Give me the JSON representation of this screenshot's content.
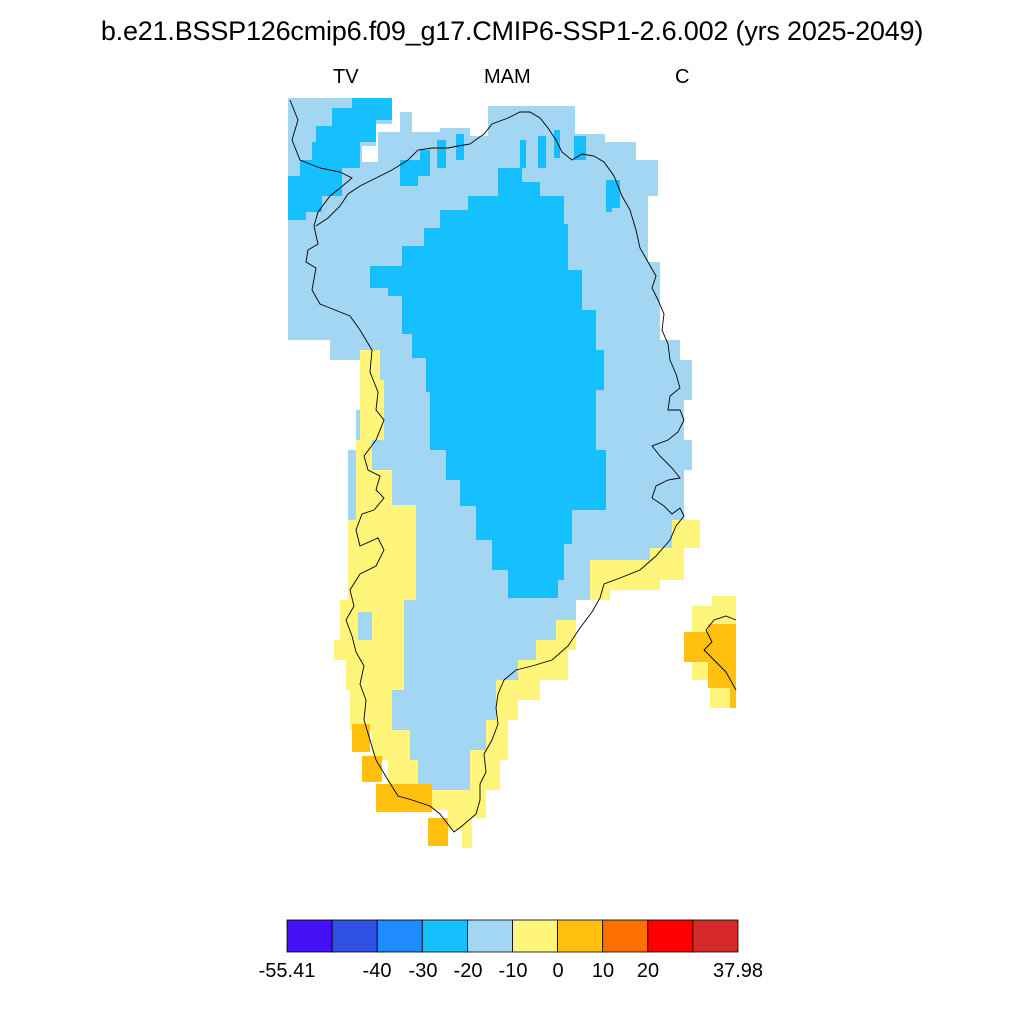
{
  "title": "b.e21.BSSP126cmip6.f09_g17.CMIP6-SSP1-2.6.002 (yrs 2025-2049)",
  "subtitle_left": "TV",
  "subtitle_center": "MAM",
  "subtitle_right": "C",
  "colorbar": {
    "colors": [
      "#4410f5",
      "#3050e6",
      "#1e8cff",
      "#16c0ff",
      "#a2d6f2",
      "#fff57a",
      "#ffc010",
      "#ff7000",
      "#ff0000",
      "#d62a2a"
    ],
    "labels": [
      "-55.41",
      "-40",
      "-30",
      "-20",
      "-10",
      "0",
      "10",
      "20",
      "37.98"
    ]
  },
  "map_colors": {
    "deep_blue": "#16c0ff",
    "light_blue": "#a2d6f2",
    "yellow": "#fff57a",
    "orange": "#ffc010",
    "coastline": "#000000"
  }
}
